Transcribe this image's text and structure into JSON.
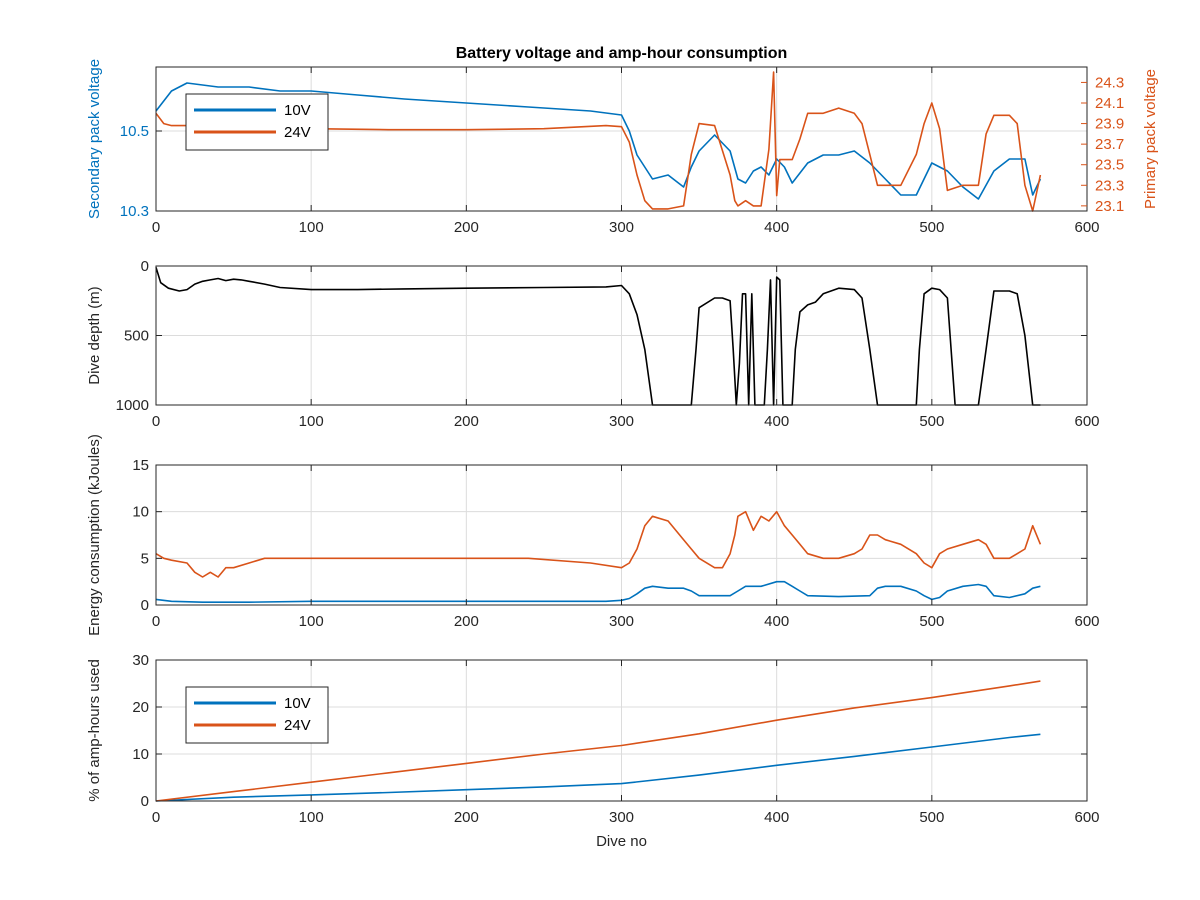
{
  "figure": {
    "colors": {
      "blue": "#0072BD",
      "orange": "#D95319",
      "black": "#000000"
    }
  },
  "chart_data": [
    {
      "type": "line",
      "title": "Battery voltage and amp-hour consumption",
      "xlabel": "",
      "xlim": [
        0,
        600
      ],
      "xticks": [
        0,
        100,
        200,
        300,
        400,
        500,
        600
      ],
      "ylabel_left": "Secondary pack voltage",
      "ylim_left": [
        10.3,
        10.66
      ],
      "yticks_left": [
        10.3,
        10.5
      ],
      "ylabel_right": "Primary pack voltage",
      "ylim_right": [
        23.05,
        24.45
      ],
      "yticks_right": [
        23.1,
        23.3,
        23.5,
        23.7,
        23.9,
        24.1,
        24.3
      ],
      "grid": true,
      "legend": {
        "placement": "top-left",
        "entries": [
          "10V",
          "24V"
        ]
      },
      "series": [
        {
          "name": "10V",
          "axis": "left",
          "color": "#0072BD",
          "x": [
            0,
            10,
            20,
            40,
            60,
            80,
            100,
            130,
            160,
            200,
            240,
            280,
            300,
            305,
            310,
            320,
            330,
            340,
            345,
            350,
            360,
            370,
            375,
            380,
            385,
            390,
            395,
            400,
            405,
            410,
            420,
            430,
            440,
            450,
            460,
            470,
            480,
            490,
            500,
            510,
            520,
            530,
            540,
            550,
            560,
            565,
            570
          ],
          "y": [
            10.55,
            10.6,
            10.62,
            10.61,
            10.61,
            10.6,
            10.6,
            10.59,
            10.58,
            10.57,
            10.56,
            10.55,
            10.54,
            10.5,
            10.44,
            10.38,
            10.39,
            10.36,
            10.41,
            10.45,
            10.49,
            10.45,
            10.38,
            10.37,
            10.4,
            10.41,
            10.39,
            10.43,
            10.41,
            10.37,
            10.42,
            10.44,
            10.44,
            10.45,
            10.42,
            10.38,
            10.34,
            10.34,
            10.42,
            10.4,
            10.36,
            10.33,
            10.4,
            10.43,
            10.43,
            10.34,
            10.38
          ]
        },
        {
          "name": "24V",
          "axis": "right",
          "color": "#D95319",
          "x": [
            0,
            5,
            10,
            20,
            40,
            60,
            100,
            150,
            200,
            250,
            290,
            300,
            305,
            310,
            315,
            320,
            330,
            340,
            345,
            350,
            360,
            370,
            373,
            375,
            380,
            385,
            390,
            395,
            398,
            400,
            402,
            405,
            410,
            415,
            420,
            430,
            440,
            450,
            455,
            460,
            465,
            470,
            480,
            490,
            495,
            500,
            505,
            510,
            520,
            530,
            535,
            540,
            550,
            555,
            560,
            565,
            570
          ],
          "y": [
            24.0,
            23.9,
            23.88,
            23.88,
            23.87,
            23.85,
            23.85,
            23.84,
            23.84,
            23.85,
            23.88,
            23.87,
            23.72,
            23.4,
            23.15,
            23.07,
            23.07,
            23.1,
            23.6,
            23.9,
            23.88,
            23.4,
            23.15,
            23.1,
            23.15,
            23.1,
            23.1,
            23.65,
            24.4,
            23.2,
            23.55,
            23.55,
            23.55,
            23.75,
            24.0,
            24.0,
            24.05,
            24.0,
            23.9,
            23.6,
            23.3,
            23.3,
            23.3,
            23.6,
            23.9,
            24.1,
            23.85,
            23.25,
            23.3,
            23.3,
            23.8,
            23.98,
            23.98,
            23.9,
            23.3,
            23.05,
            23.4
          ]
        }
      ]
    },
    {
      "type": "line",
      "title": "",
      "xlabel": "",
      "ylabel": "Dive depth (m)",
      "xlim": [
        0,
        600
      ],
      "xticks": [
        0,
        100,
        200,
        300,
        400,
        500,
        600
      ],
      "ylim": [
        0,
        1000
      ],
      "yticks": [
        0,
        500,
        1000
      ],
      "yreversed": true,
      "grid": true,
      "series": [
        {
          "name": "",
          "color": "#000000",
          "x": [
            0,
            3,
            8,
            15,
            20,
            25,
            30,
            35,
            40,
            45,
            50,
            55,
            60,
            70,
            80,
            100,
            130,
            160,
            200,
            250,
            290,
            300,
            305,
            310,
            315,
            320,
            330,
            340,
            345,
            348,
            350,
            360,
            365,
            370,
            372,
            374,
            376,
            378,
            380,
            382,
            384,
            386,
            388,
            390,
            392,
            394,
            396,
            398,
            400,
            402,
            404,
            406,
            408,
            410,
            412,
            415,
            420,
            425,
            430,
            440,
            450,
            455,
            460,
            465,
            470,
            480,
            490,
            492,
            495,
            500,
            505,
            510,
            515,
            520,
            525,
            530,
            535,
            540,
            550,
            555,
            560,
            565,
            570
          ],
          "y": [
            10,
            120,
            160,
            180,
            170,
            130,
            110,
            100,
            90,
            105,
            95,
            100,
            110,
            130,
            155,
            170,
            170,
            165,
            160,
            155,
            150,
            140,
            200,
            350,
            600,
            1000,
            1000,
            1000,
            1000,
            600,
            300,
            230,
            230,
            250,
            600,
            1000,
            700,
            200,
            200,
            1000,
            200,
            1000,
            1000,
            1000,
            1000,
            600,
            100,
            1000,
            80,
            100,
            1000,
            1000,
            1000,
            1000,
            600,
            330,
            280,
            260,
            200,
            160,
            170,
            230,
            600,
            1000,
            1000,
            1000,
            1000,
            600,
            200,
            160,
            170,
            230,
            1000,
            1000,
            1000,
            1000,
            600,
            180,
            180,
            200,
            500,
            1000,
            1000
          ]
        }
      ]
    },
    {
      "type": "line",
      "title": "",
      "xlabel": "",
      "ylabel": "Energy consumption (kJoules)",
      "xlim": [
        0,
        600
      ],
      "xticks": [
        0,
        100,
        200,
        300,
        400,
        500,
        600
      ],
      "ylim": [
        0,
        15
      ],
      "yticks": [
        0,
        5,
        10,
        15
      ],
      "grid": true,
      "series": [
        {
          "name": "24V",
          "color": "#D95319",
          "x": [
            0,
            5,
            10,
            20,
            25,
            30,
            35,
            40,
            45,
            50,
            60,
            70,
            80,
            100,
            130,
            160,
            200,
            240,
            280,
            300,
            305,
            310,
            315,
            320,
            330,
            340,
            345,
            350,
            360,
            365,
            370,
            373,
            375,
            380,
            385,
            390,
            395,
            400,
            405,
            410,
            415,
            420,
            430,
            440,
            450,
            455,
            460,
            465,
            470,
            480,
            490,
            495,
            500,
            505,
            510,
            520,
            530,
            535,
            540,
            550,
            555,
            560,
            565,
            570
          ],
          "y": [
            5.5,
            5.0,
            4.8,
            4.5,
            3.5,
            3.0,
            3.5,
            3.0,
            4.0,
            4.0,
            4.5,
            5.0,
            5.0,
            5.0,
            5.0,
            5.0,
            5.0,
            5.0,
            4.5,
            4.0,
            4.5,
            6.0,
            8.5,
            9.5,
            9.0,
            7.0,
            6.0,
            5.0,
            4.0,
            4.0,
            5.5,
            7.5,
            9.5,
            10.0,
            8.0,
            9.5,
            9.0,
            10.0,
            8.5,
            7.5,
            6.5,
            5.5,
            5.0,
            5.0,
            5.5,
            6.0,
            7.5,
            7.5,
            7.0,
            6.5,
            5.5,
            4.5,
            4.0,
            5.5,
            6.0,
            6.5,
            7.0,
            6.5,
            5.0,
            5.0,
            5.5,
            6.0,
            8.5,
            6.5
          ]
        },
        {
          "name": "10V",
          "color": "#0072BD",
          "x": [
            0,
            10,
            30,
            60,
            100,
            150,
            200,
            250,
            290,
            300,
            305,
            310,
            315,
            320,
            330,
            340,
            345,
            350,
            360,
            370,
            375,
            380,
            390,
            400,
            405,
            410,
            415,
            420,
            440,
            460,
            465,
            470,
            480,
            490,
            495,
            500,
            505,
            510,
            520,
            530,
            535,
            540,
            550,
            560,
            565,
            570
          ],
          "y": [
            0.6,
            0.4,
            0.3,
            0.3,
            0.4,
            0.4,
            0.4,
            0.4,
            0.4,
            0.5,
            0.7,
            1.2,
            1.8,
            2.0,
            1.8,
            1.8,
            1.5,
            1.0,
            1.0,
            1.0,
            1.5,
            2.0,
            2.0,
            2.5,
            2.5,
            2.0,
            1.5,
            1.0,
            0.9,
            1.0,
            1.8,
            2.0,
            2.0,
            1.5,
            1.0,
            0.6,
            0.8,
            1.5,
            2.0,
            2.2,
            2.0,
            1.0,
            0.8,
            1.2,
            1.8,
            2.0
          ]
        }
      ]
    },
    {
      "type": "line",
      "title": "",
      "xlabel": "Dive no",
      "ylabel": "% of amp-hours used",
      "xlim": [
        0,
        600
      ],
      "xticks": [
        0,
        100,
        200,
        300,
        400,
        500,
        600
      ],
      "ylim": [
        0,
        30
      ],
      "yticks": [
        0,
        10,
        20,
        30
      ],
      "grid": true,
      "legend": {
        "placement": "top-left",
        "entries": [
          "10V",
          "24V"
        ]
      },
      "series": [
        {
          "name": "10V",
          "color": "#0072BD",
          "x": [
            0,
            50,
            100,
            150,
            200,
            250,
            300,
            350,
            400,
            450,
            500,
            550,
            570
          ],
          "y": [
            0,
            0.8,
            1.3,
            1.8,
            2.4,
            3.0,
            3.7,
            5.5,
            7.6,
            9.5,
            11.5,
            13.5,
            14.2
          ]
        },
        {
          "name": "24V",
          "color": "#D95319",
          "x": [
            0,
            50,
            100,
            150,
            200,
            250,
            300,
            350,
            400,
            450,
            500,
            550,
            570
          ],
          "y": [
            0,
            2.0,
            4.0,
            6.0,
            8.0,
            10.0,
            11.8,
            14.3,
            17.2,
            19.8,
            22.0,
            24.5,
            25.5
          ]
        }
      ]
    }
  ]
}
